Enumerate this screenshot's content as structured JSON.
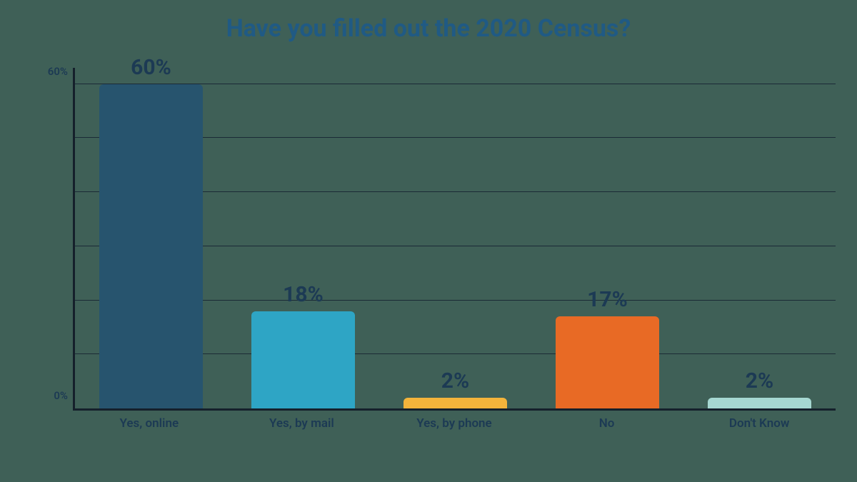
{
  "chart": {
    "type": "bar",
    "title": "Have you filled out the 2020 Census?",
    "title_color": "#205a84",
    "title_fontsize": 34,
    "background_color": "#3f6057",
    "axis_color": "#15202b",
    "grid_color": "#1b2a36",
    "ylim_max": 63,
    "gridline_step": 10,
    "ytick_values": [
      0,
      60
    ],
    "ytick_labels": [
      "0%",
      "60%"
    ],
    "ylabel_color": "#1c3a54",
    "ylabel_fontsize": 15,
    "value_label_color": "#1c3a54",
    "value_label_fontsize": 30,
    "xlabel_color": "#1c3a54",
    "xlabel_fontsize": 17,
    "bar_width_pct": 68,
    "bar_radius": 6,
    "bars": [
      {
        "label": "Yes, online",
        "value": 60,
        "value_label": "60%",
        "color": "#27546e"
      },
      {
        "label": "Yes, by mail",
        "value": 18,
        "value_label": "18%",
        "color": "#2ea5c5"
      },
      {
        "label": "Yes, by phone",
        "value": 2,
        "value_label": "2%",
        "color": "#f4b43b"
      },
      {
        "label": "No",
        "value": 17,
        "value_label": "17%",
        "color": "#e86a25"
      },
      {
        "label": "Don't Know",
        "value": 2,
        "value_label": "2%",
        "color": "#a6d8d2"
      }
    ]
  }
}
